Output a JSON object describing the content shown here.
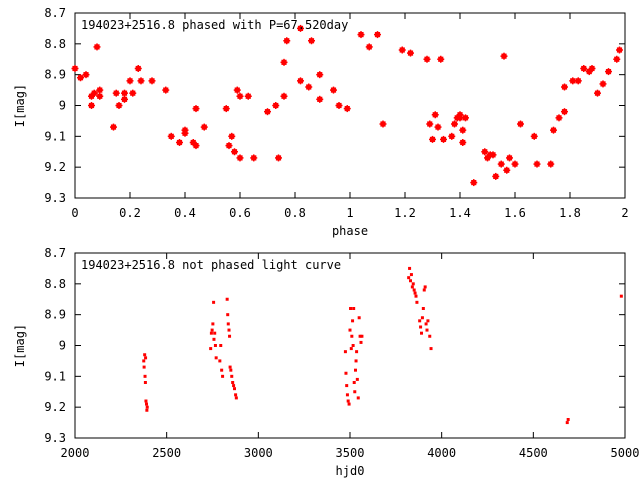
{
  "chart_data": [
    {
      "type": "scatter",
      "title": "194023+2516.8 phased with P=67.520day",
      "xlabel": "phase",
      "ylabel": "I[mag]",
      "xlim": [
        0,
        2
      ],
      "ylim": [
        8.7,
        9.3
      ],
      "y_inverted": true,
      "x_ticks": [
        "0",
        "0.2",
        "0.4",
        "0.6",
        "0.8",
        "1",
        "1.2",
        "1.4",
        "1.6",
        "1.8",
        "2"
      ],
      "y_ticks": [
        "8.7",
        "8.8",
        "8.9",
        "9",
        "9.1",
        "9.2",
        "9.3"
      ],
      "marker": "cross",
      "color": "#ff0000",
      "series": [
        {
          "x": [
            0.0,
            0.02,
            0.04,
            0.06,
            0.06,
            0.07,
            0.08,
            0.09,
            0.09,
            0.14,
            0.15,
            0.16,
            0.18,
            0.18,
            0.2,
            0.21,
            0.23,
            0.24,
            0.28,
            0.33,
            0.35,
            0.38,
            0.4,
            0.4,
            0.43,
            0.44,
            0.44,
            0.47,
            0.55,
            0.56,
            0.57,
            0.58,
            0.59,
            0.6,
            0.6,
            0.63,
            0.65,
            0.7,
            0.73,
            0.74,
            0.76,
            0.76,
            0.77,
            0.82,
            0.82,
            0.85,
            0.86,
            0.89,
            0.89,
            0.94,
            0.96,
            0.99,
            1.04,
            1.07,
            1.1,
            1.12,
            1.19,
            1.22,
            1.28,
            1.29,
            1.3,
            1.31,
            1.32,
            1.33,
            1.34,
            1.37,
            1.38,
            1.39,
            1.4,
            1.4,
            1.41,
            1.41,
            1.42,
            1.45,
            1.49,
            1.5,
            1.51,
            1.52,
            1.53,
            1.55,
            1.56,
            1.57,
            1.58,
            1.6,
            1.62,
            1.67,
            1.68,
            1.73,
            1.74,
            1.76,
            1.78,
            1.78,
            1.81,
            1.83,
            1.85,
            1.87,
            1.88,
            1.9,
            1.92,
            1.94,
            1.97,
            1.98
          ],
          "y": [
            8.88,
            8.91,
            8.9,
            8.97,
            9.0,
            8.96,
            8.81,
            8.97,
            8.95,
            9.07,
            8.96,
            9.0,
            8.98,
            8.96,
            8.92,
            8.96,
            8.88,
            8.92,
            8.92,
            8.95,
            9.1,
            9.12,
            9.09,
            9.08,
            9.12,
            9.13,
            9.01,
            9.07,
            9.01,
            9.13,
            9.1,
            9.15,
            8.95,
            8.97,
            9.17,
            8.97,
            9.17,
            9.02,
            9.0,
            9.17,
            8.86,
            8.97,
            8.79,
            8.75,
            8.92,
            8.94,
            8.79,
            8.98,
            8.9,
            8.95,
            9.0,
            9.01,
            8.77,
            8.81,
            8.77,
            9.06,
            8.82,
            8.83,
            8.85,
            9.06,
            9.11,
            9.03,
            9.07,
            8.85,
            9.11,
            9.1,
            9.06,
            9.04,
            9.04,
            9.03,
            9.08,
            9.12,
            9.04,
            9.25,
            9.15,
            9.17,
            9.16,
            9.16,
            9.23,
            9.19,
            8.84,
            9.21,
            9.17,
            9.19,
            9.06,
            9.1,
            9.19,
            9.19,
            9.08,
            9.04,
            8.94,
            9.02,
            8.92,
            8.92,
            8.88,
            8.89,
            8.88,
            8.96,
            8.93,
            8.89,
            8.85,
            8.82
          ]
        }
      ]
    },
    {
      "type": "scatter",
      "title": "194023+2516.8 not phased light curve",
      "xlabel": "hjd0",
      "ylabel": "I[mag]",
      "xlim": [
        2000,
        5000
      ],
      "ylim": [
        8.7,
        9.3
      ],
      "y_inverted": true,
      "x_ticks": [
        "2000",
        "2500",
        "3000",
        "3500",
        "4000",
        "4500",
        "5000"
      ],
      "y_ticks": [
        "8.7",
        "8.8",
        "8.9",
        "9",
        "9.1",
        "9.2",
        "9.3"
      ],
      "marker": "dot",
      "color": "#ff0000",
      "series": [
        {
          "x": [
            2375,
            2377,
            2380,
            2382,
            2384,
            2385,
            2387,
            2390,
            2392,
            2394,
            2740,
            2744,
            2748,
            2752,
            2756,
            2758,
            2762,
            2766,
            2770,
            2790,
            2795,
            2800,
            2805,
            2830,
            2833,
            2836,
            2840,
            2843,
            2846,
            2850,
            2855,
            2860,
            2865,
            2870,
            2876,
            2880,
            3475,
            3478,
            3482,
            3486,
            3490,
            3495,
            3500,
            3503,
            3507,
            3510,
            3514,
            3517,
            3520,
            3523,
            3526,
            3530,
            3533,
            3536,
            3540,
            3545,
            3550,
            3555,
            3560,
            3565,
            3820,
            3825,
            3830,
            3835,
            3840,
            3845,
            3850,
            3855,
            3860,
            3865,
            3880,
            3885,
            3890,
            3895,
            3900,
            3905,
            3910,
            3915,
            3920,
            3925,
            3935,
            3942,
            4685,
            4690,
            4980
          ],
          "y": [
            9.05,
            9.07,
            9.03,
            9.1,
            9.12,
            9.04,
            9.18,
            9.19,
            9.21,
            9.2,
            9.01,
            8.96,
            8.95,
            8.93,
            8.86,
            8.98,
            8.96,
            9.0,
            9.04,
            9.05,
            9.0,
            9.08,
            9.1,
            8.85,
            8.9,
            8.93,
            8.95,
            8.97,
            9.07,
            9.08,
            9.1,
            9.12,
            9.13,
            9.14,
            9.16,
            9.17,
            9.02,
            9.09,
            9.13,
            9.16,
            9.18,
            9.19,
            8.95,
            8.88,
            9.01,
            8.97,
            8.92,
            9.0,
            8.88,
            9.12,
            9.15,
            9.08,
            9.05,
            9.02,
            9.11,
            9.17,
            8.91,
            8.97,
            8.99,
            8.97,
            8.78,
            8.75,
            8.79,
            8.77,
            8.81,
            8.8,
            8.82,
            8.83,
            8.84,
            8.86,
            8.92,
            8.94,
            8.96,
            8.91,
            8.88,
            8.82,
            8.81,
            8.93,
            8.95,
            8.92,
            8.97,
            9.01,
            9.25,
            9.24,
            8.84
          ]
        }
      ]
    }
  ]
}
